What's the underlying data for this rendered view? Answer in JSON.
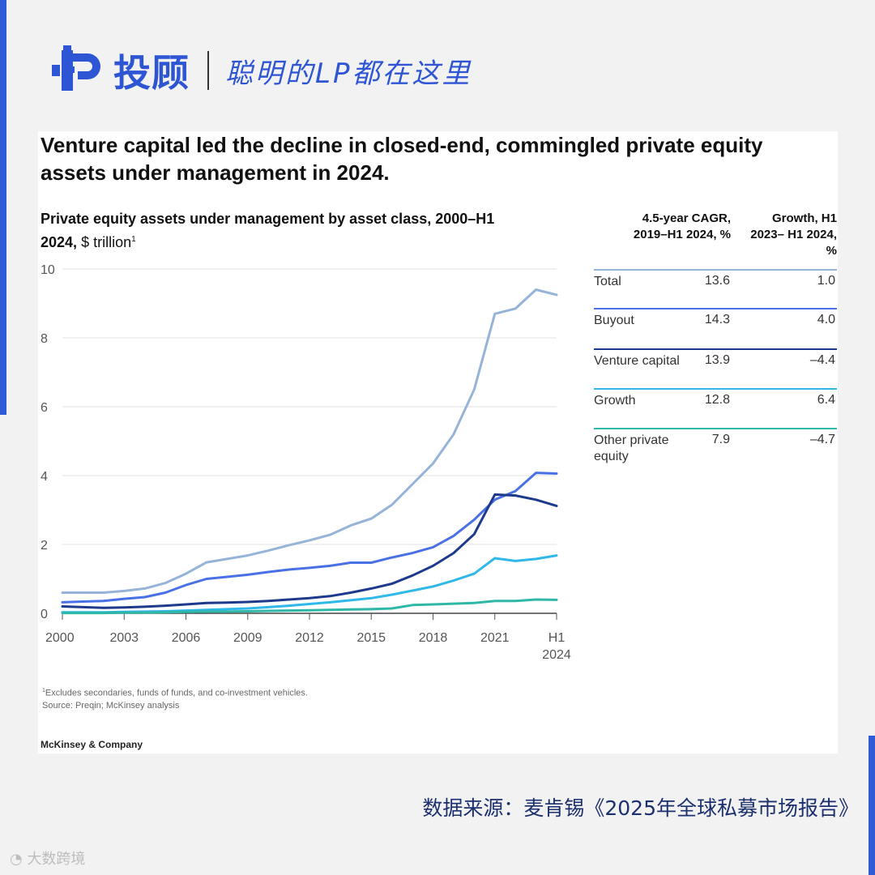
{
  "brand": {
    "name": "投顾",
    "slogan": "聪明的LP都在这里"
  },
  "title": "Venture capital led the decline in closed-end, commingled private equity assets under management in 2024.",
  "subtitle": {
    "main": "Private equity assets under management by asset class, 2000–H1 2024,",
    "unit": "$ trillion",
    "note_mark": "1"
  },
  "table": {
    "header_cagr": "4.5-year CAGR, 2019–H1 2024, %",
    "header_growth": "Growth, H1 2023– H1 2024, %",
    "rows": [
      {
        "name": "Total",
        "cagr": "13.6",
        "growth": "1.0",
        "color": "#95b4d8"
      },
      {
        "name": "Buyout",
        "cagr": "14.3",
        "growth": "4.0",
        "color": "#4a70e6"
      },
      {
        "name": "Venture capital",
        "cagr": "13.9",
        "growth": "–4.4",
        "color": "#1e3a8c"
      },
      {
        "name": "Growth",
        "cagr": "12.8",
        "growth": "6.4",
        "color": "#2fb8e8"
      },
      {
        "name": "Other private equity",
        "cagr": "7.9",
        "growth": "–4.7",
        "color": "#2fb8a8"
      }
    ]
  },
  "chart_data": {
    "type": "line",
    "title": "Private equity assets under management by asset class, 2000–H1 2024, $ trillion",
    "x": [
      2000,
      2001,
      2002,
      2003,
      2004,
      2005,
      2006,
      2007,
      2008,
      2009,
      2010,
      2011,
      2012,
      2013,
      2014,
      2015,
      2016,
      2017,
      2018,
      2019,
      2020,
      2021,
      2022,
      2023,
      "H1 2024"
    ],
    "x_tick_labels": [
      "2000",
      "2003",
      "2006",
      "2009",
      "2012",
      "2015",
      "2018",
      "2021",
      "H1 2024"
    ],
    "y_ticks": [
      0,
      2,
      4,
      6,
      8,
      10
    ],
    "ylim": [
      0,
      10
    ],
    "series": [
      {
        "name": "Total",
        "color": "#95b4d8",
        "values": [
          0.6,
          0.6,
          0.6,
          0.65,
          0.72,
          0.88,
          1.15,
          1.48,
          1.58,
          1.68,
          1.82,
          1.98,
          2.12,
          2.28,
          2.55,
          2.75,
          3.15,
          3.75,
          4.35,
          5.2,
          6.5,
          8.7,
          8.85,
          9.4,
          9.25
        ]
      },
      {
        "name": "Buyout",
        "color": "#4a70e6",
        "values": [
          0.32,
          0.34,
          0.36,
          0.42,
          0.47,
          0.6,
          0.82,
          1.0,
          1.06,
          1.12,
          1.2,
          1.27,
          1.32,
          1.38,
          1.47,
          1.47,
          1.62,
          1.75,
          1.92,
          2.25,
          2.72,
          3.3,
          3.55,
          4.08,
          4.06
        ]
      },
      {
        "name": "Venture capital",
        "color": "#1e3a8c",
        "values": [
          0.2,
          0.18,
          0.16,
          0.17,
          0.19,
          0.22,
          0.26,
          0.3,
          0.31,
          0.33,
          0.36,
          0.4,
          0.44,
          0.5,
          0.6,
          0.72,
          0.86,
          1.1,
          1.38,
          1.75,
          2.3,
          3.45,
          3.42,
          3.3,
          3.12
        ]
      },
      {
        "name": "Growth",
        "color": "#2fb8e8",
        "values": [
          0.03,
          0.03,
          0.03,
          0.04,
          0.05,
          0.06,
          0.08,
          0.1,
          0.12,
          0.14,
          0.18,
          0.22,
          0.27,
          0.32,
          0.38,
          0.44,
          0.54,
          0.66,
          0.78,
          0.95,
          1.15,
          1.6,
          1.52,
          1.58,
          1.68
        ]
      },
      {
        "name": "Other private equity",
        "color": "#2fb8a8",
        "values": [
          0.01,
          0.01,
          0.01,
          0.02,
          0.02,
          0.03,
          0.04,
          0.05,
          0.05,
          0.06,
          0.07,
          0.08,
          0.09,
          0.1,
          0.11,
          0.12,
          0.14,
          0.24,
          0.26,
          0.28,
          0.3,
          0.36,
          0.36,
          0.4,
          0.39
        ]
      }
    ]
  },
  "footnote": {
    "mark": "1",
    "text": "Excludes secondaries, funds of funds, and co-investment vehicles.",
    "source": "Source: Preqin; McKinsey analysis"
  },
  "publisher": "McKinsey & Company",
  "data_source": "数据来源：麦肯锡《2025年全球私募市场报告》",
  "watermark": "大数跨境"
}
